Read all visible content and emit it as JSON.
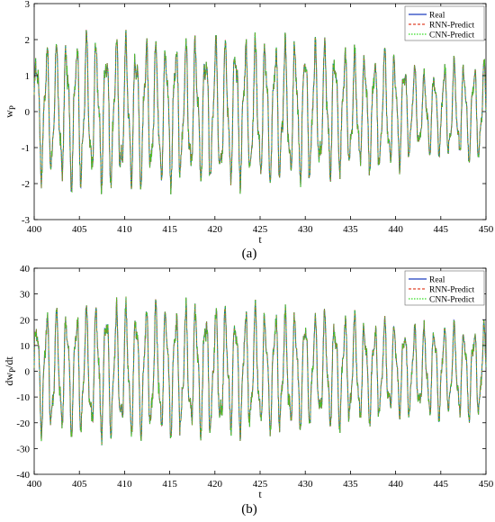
{
  "chart_data": [
    {
      "type": "line",
      "caption": "(a)",
      "xlabel": "t",
      "ylabel_main": "w",
      "ylabel_sub": "P",
      "xlim": [
        400,
        450
      ],
      "ylim": [
        -3,
        3
      ],
      "xticks": [
        400,
        405,
        410,
        415,
        420,
        425,
        430,
        435,
        440,
        445,
        450
      ],
      "yticks": [
        -3,
        -2,
        -1,
        0,
        1,
        2,
        3
      ],
      "grid": false,
      "legend_position": "top-right",
      "series": [
        {
          "name": "Real",
          "color": "#1f3fbf",
          "style": "solid"
        },
        {
          "name": "RNN-Predict",
          "color": "#e0442a",
          "style": "dashed"
        },
        {
          "name": "CNN-Predict",
          "color": "#33dd22",
          "style": "dotted"
        }
      ],
      "signal": {
        "sample_step": 0.04,
        "oscillation_period": 1.1,
        "envelope": [
          {
            "t": 400,
            "amp": 2.0
          },
          {
            "t": 405,
            "amp": 2.3
          },
          {
            "t": 410,
            "amp": 2.3
          },
          {
            "t": 415,
            "amp": 2.2
          },
          {
            "t": 420,
            "amp": 2.2
          },
          {
            "t": 425,
            "amp": 2.2
          },
          {
            "t": 430,
            "amp": 2.2
          },
          {
            "t": 435,
            "amp": 1.9
          },
          {
            "t": 440,
            "amp": 1.8
          },
          {
            "t": 443,
            "amp": 1.2
          },
          {
            "t": 445,
            "amp": 1.5
          },
          {
            "t": 450,
            "amp": 1.5
          }
        ]
      }
    },
    {
      "type": "line",
      "caption": "(b)",
      "xlabel": "t",
      "ylabel_main": "dw",
      "ylabel_sub": "P",
      "ylabel_tail": "/dt",
      "xlim": [
        400,
        450
      ],
      "ylim": [
        -40,
        40
      ],
      "xticks": [
        400,
        405,
        410,
        415,
        420,
        425,
        430,
        435,
        440,
        445,
        450
      ],
      "yticks": [
        -40,
        -30,
        -20,
        -10,
        0,
        10,
        20,
        30,
        40
      ],
      "grid": false,
      "legend_position": "top-right",
      "series": [
        {
          "name": "Real",
          "color": "#1f3fbf",
          "style": "solid"
        },
        {
          "name": "RNN-Predict",
          "color": "#e0442a",
          "style": "dashed"
        },
        {
          "name": "CNN-Predict",
          "color": "#33dd22",
          "style": "dotted"
        }
      ],
      "signal": {
        "sample_step": 0.04,
        "oscillation_period": 1.1,
        "envelope": [
          {
            "t": 400,
            "amp": 26
          },
          {
            "t": 405,
            "amp": 28
          },
          {
            "t": 410,
            "amp": 29
          },
          {
            "t": 415,
            "amp": 28
          },
          {
            "t": 420,
            "amp": 27
          },
          {
            "t": 425,
            "amp": 27
          },
          {
            "t": 430,
            "amp": 25
          },
          {
            "t": 435,
            "amp": 24
          },
          {
            "t": 440,
            "amp": 20
          },
          {
            "t": 445,
            "amp": 20
          },
          {
            "t": 450,
            "amp": 20
          }
        ]
      }
    }
  ]
}
